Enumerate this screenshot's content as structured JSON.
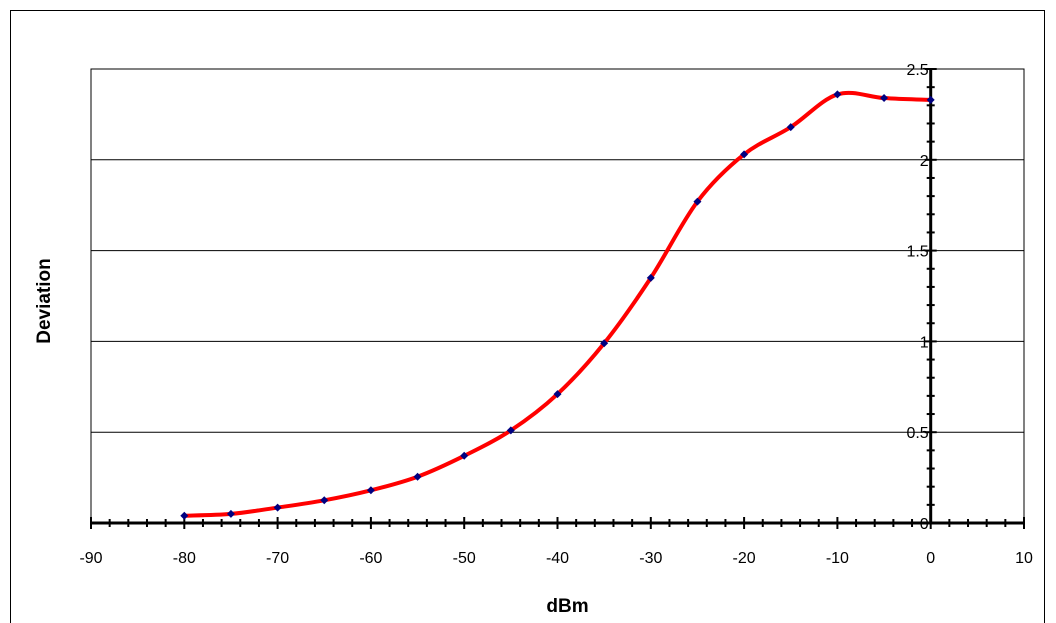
{
  "chart_data": {
    "type": "line",
    "title": "",
    "xlabel": "dBm",
    "ylabel": "Deviation",
    "xlim": [
      -90,
      10
    ],
    "ylim": [
      0,
      2.5
    ],
    "x_ticks": [
      -90,
      -80,
      -70,
      -60,
      -50,
      -40,
      -30,
      -20,
      -10,
      0,
      10
    ],
    "x_tick_labels": [
      "-90",
      "-80",
      "-70",
      "-60",
      "-50",
      "-40",
      "-30",
      "-20",
      "-10",
      "0",
      "10"
    ],
    "y_ticks": [
      0,
      0.5,
      1,
      1.5,
      2,
      2.5
    ],
    "y_tick_labels": [
      "0",
      "0.5",
      "1",
      "1.5",
      "2",
      "2.5"
    ],
    "grid": "horizontal",
    "legend": "none",
    "series": [
      {
        "x": [
          -80,
          -75,
          -70,
          -65,
          -60,
          -55,
          -50,
          -45,
          -40,
          -35,
          -30,
          -25,
          -20,
          -15,
          -10,
          -5,
          0
        ],
        "values": [
          0.04,
          0.05,
          0.085,
          0.125,
          0.18,
          0.255,
          0.37,
          0.51,
          0.71,
          0.99,
          1.35,
          1.77,
          2.03,
          2.18,
          2.36,
          2.34,
          2.33
        ],
        "line_color": "#ff0000",
        "marker_color": "#000080"
      }
    ]
  }
}
